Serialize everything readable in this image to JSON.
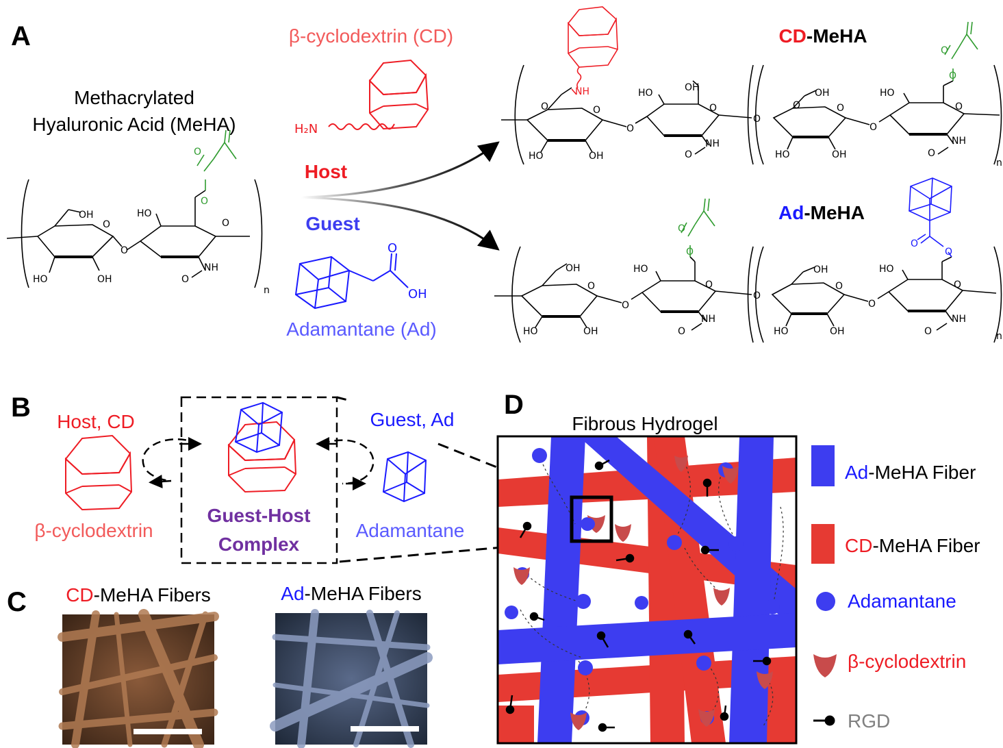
{
  "panels": {
    "a": "A",
    "b": "B",
    "c": "C",
    "d": "D"
  },
  "panel_a": {
    "meha_title_line1": "Methacrylated",
    "meha_title_line2": "Hyaluronic Acid (MeHA)",
    "cd_title": "β-cyclodextrin (CD)",
    "host": "Host",
    "guest": "Guest",
    "ad_title": "Adamantane (Ad)",
    "cd_meha_prefix": "CD",
    "ad_meha_prefix": "Ad",
    "meha_suffix": "-MeHA",
    "h2n": "H₂N",
    "oh": "OH",
    "ho": "HO",
    "nh": "NH",
    "o": "O",
    "n": "n"
  },
  "panel_b": {
    "host_cd": "Host, CD",
    "guest_ad": "Guest, Ad",
    "beta_cd": "β-cyclodextrin",
    "adamantane": "Adamantane",
    "complex_line1": "Guest-Host",
    "complex_line2": "Complex"
  },
  "panel_c": {
    "cd_prefix": "CD",
    "ad_prefix": "Ad",
    "fibers_suffix": "-MeHA Fibers"
  },
  "panel_d": {
    "title": "Fibrous Hydrogel",
    "legend": {
      "ad_prefix": "Ad",
      "ad_fiber_suffix": "-MeHA Fiber",
      "cd_prefix": "CD",
      "cd_fiber_suffix": "-MeHA Fiber",
      "adamantane": "Adamantane",
      "cyclodextrin": "β-cyclodextrin",
      "rgd": "RGD"
    }
  },
  "colors": {
    "red": "#ee1c24",
    "light_red": "#f25a5a",
    "blue": "#1a1aff",
    "light_blue": "#5a5aff",
    "purple": "#7030a0",
    "green": "#2e9b2e",
    "fiber_red": "#e63a33",
    "fiber_blue": "#3d3df0",
    "cd_shape": "#c84b4b",
    "gray": "#808080"
  }
}
